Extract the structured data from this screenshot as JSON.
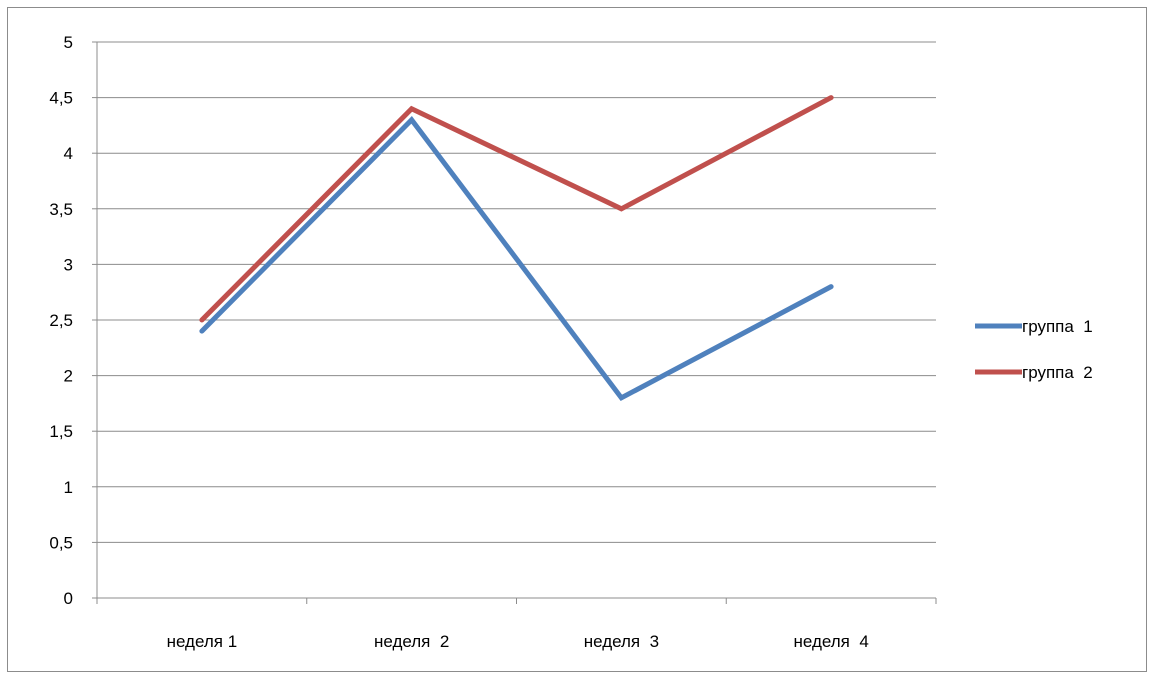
{
  "chart_data": {
    "type": "line",
    "categories": [
      "неделя 1",
      "неделя  2",
      "неделя  3",
      "неделя  4"
    ],
    "series": [
      {
        "name": "группа  1",
        "color": "#4f81bd",
        "values": [
          2.4,
          4.3,
          1.8,
          2.8
        ]
      },
      {
        "name": "группа  2",
        "color": "#c0504d",
        "values": [
          2.5,
          4.4,
          3.5,
          4.5
        ]
      }
    ],
    "ylim": [
      0,
      5
    ],
    "yticks": [
      "0",
      "0,5",
      "1",
      "1,5",
      "2",
      "2,5",
      "3",
      "3,5",
      "4",
      "4,5",
      "5"
    ],
    "grid": true,
    "legend_position": "right"
  }
}
